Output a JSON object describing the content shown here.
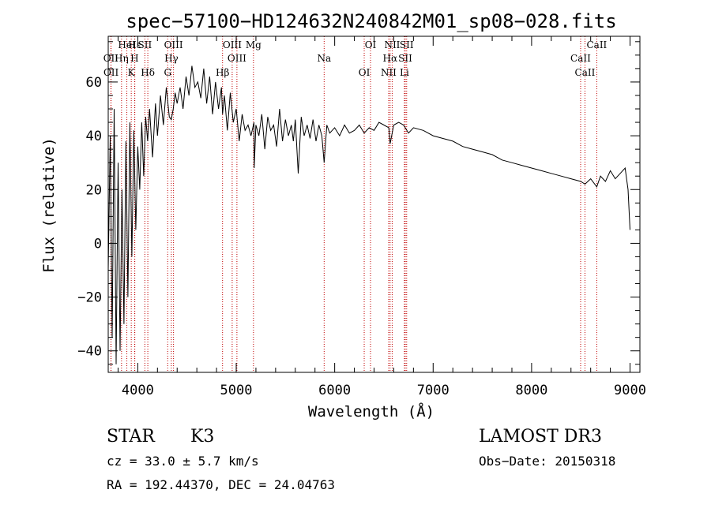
{
  "chart_data": {
    "type": "line",
    "title": "spec−57100−HD124632N240842M01_sp08−028.fits",
    "xlabel": "Wavelength (Å)",
    "ylabel": "Flux (relative)",
    "xlim": [
      3700,
      9100
    ],
    "ylim": [
      -48,
      77
    ],
    "xticks": [
      4000,
      5000,
      6000,
      7000,
      8000,
      9000
    ],
    "xtick_labels": [
      "4000",
      "5000",
      "6000",
      "7000",
      "8000",
      "9000"
    ],
    "yticks": [
      -40,
      -20,
      0,
      20,
      40,
      60
    ],
    "ytick_labels": [
      "−40",
      "−20",
      "0",
      "20",
      "40",
      "60"
    ],
    "series": [
      {
        "name": "flux",
        "x": [
          3700,
          3720,
          3740,
          3760,
          3780,
          3800,
          3820,
          3840,
          3860,
          3880,
          3900,
          3920,
          3940,
          3960,
          3980,
          4000,
          4020,
          4040,
          4060,
          4080,
          4100,
          4120,
          4150,
          4180,
          4200,
          4230,
          4260,
          4290,
          4320,
          4340,
          4360,
          4380,
          4400,
          4430,
          4460,
          4490,
          4520,
          4550,
          4580,
          4610,
          4640,
          4670,
          4700,
          4730,
          4760,
          4790,
          4820,
          4850,
          4861,
          4880,
          4910,
          4940,
          4970,
          5000,
          5030,
          5060,
          5090,
          5120,
          5150,
          5180,
          5183,
          5200,
          5230,
          5260,
          5290,
          5320,
          5350,
          5380,
          5410,
          5440,
          5470,
          5500,
          5530,
          5560,
          5580,
          5600,
          5630,
          5660,
          5690,
          5720,
          5750,
          5780,
          5810,
          5840,
          5870,
          5893,
          5920,
          5950,
          6000,
          6050,
          6100,
          6150,
          6200,
          6250,
          6300,
          6350,
          6400,
          6450,
          6500,
          6550,
          6563,
          6600,
          6650,
          6700,
          6750,
          6800,
          6900,
          7000,
          7100,
          7200,
          7300,
          7400,
          7500,
          7600,
          7700,
          7800,
          7900,
          8000,
          8100,
          8200,
          8300,
          8400,
          8500,
          8542,
          8600,
          8662,
          8700,
          8750,
          8800,
          8850,
          8900,
          8950,
          8980,
          9000
        ],
        "y": [
          -10,
          40,
          -35,
          50,
          -45,
          30,
          -40,
          20,
          -30,
          38,
          -20,
          45,
          -5,
          42,
          5,
          36,
          20,
          45,
          25,
          47,
          38,
          50,
          32,
          52,
          40,
          55,
          44,
          58,
          47,
          46,
          50,
          56,
          52,
          58,
          50,
          62,
          55,
          66,
          58,
          60,
          54,
          65,
          52,
          62,
          48,
          60,
          50,
          58,
          48,
          55,
          42,
          56,
          45,
          50,
          38,
          48,
          42,
          44,
          40,
          45,
          28,
          44,
          40,
          48,
          35,
          47,
          42,
          44,
          36,
          50,
          38,
          46,
          40,
          44,
          38,
          46,
          26,
          47,
          40,
          44,
          39,
          46,
          38,
          44,
          40,
          30,
          44,
          41,
          43,
          40,
          44,
          41,
          42,
          44,
          41,
          43,
          42,
          45,
          44,
          43,
          37,
          44,
          45,
          44,
          41,
          43,
          42,
          40,
          39,
          38,
          36,
          35,
          34,
          33,
          31,
          30,
          29,
          28,
          27,
          26,
          25,
          24,
          23,
          22,
          24,
          21,
          25,
          23,
          27,
          24,
          26,
          28,
          20,
          5
        ]
      }
    ],
    "spectral_lines": [
      {
        "name": "Hε",
        "wavelength": 3970
      },
      {
        "name": "OII",
        "wavelength": 3727
      },
      {
        "name": "OII",
        "wavelength": 3729
      },
      {
        "name": "HeI",
        "wavelength": 3889
      },
      {
        "name": "Hη",
        "wavelength": 3835
      },
      {
        "name": "K",
        "wavelength": 3934
      },
      {
        "name": "SII",
        "wavelength": 4072
      },
      {
        "name": "H",
        "wavelength": 3968
      },
      {
        "name": "Hδ",
        "wavelength": 4102
      },
      {
        "name": "OIII",
        "wavelength": 4363
      },
      {
        "name": "Hγ",
        "wavelength": 4341
      },
      {
        "name": "G",
        "wavelength": 4304
      },
      {
        "name": "OIII",
        "wavelength": 4959
      },
      {
        "name": "OIII",
        "wavelength": 5007
      },
      {
        "name": "Hβ",
        "wavelength": 4861
      },
      {
        "name": "Mg",
        "wavelength": 5175
      },
      {
        "name": "Na",
        "wavelength": 5893
      },
      {
        "name": "OI",
        "wavelength": 6300
      },
      {
        "name": "OI",
        "wavelength": 6364
      },
      {
        "name": "Hα",
        "wavelength": 6563
      },
      {
        "name": "NII",
        "wavelength": 6548
      },
      {
        "name": "NII",
        "wavelength": 6584
      },
      {
        "name": "SII",
        "wavelength": 6717
      },
      {
        "name": "Li",
        "wavelength": 6708
      },
      {
        "name": "SII",
        "wavelength": 6731
      },
      {
        "name": "CaII",
        "wavelength": 8498
      },
      {
        "name": "CaII",
        "wavelength": 8542
      },
      {
        "name": "CaII",
        "wavelength": 8662
      }
    ]
  },
  "info": {
    "object_type": "STAR",
    "subclass": "K3",
    "survey": "LAMOST DR3",
    "cz": "cz = 33.0 ± 5.7 km/s",
    "obs_date": "Obs−Date: 20150318",
    "coords": "RA = 192.44370, DEC =  24.04763"
  },
  "colors": {
    "line": "#000000",
    "marker": "#c00000",
    "axis": "#000000"
  }
}
